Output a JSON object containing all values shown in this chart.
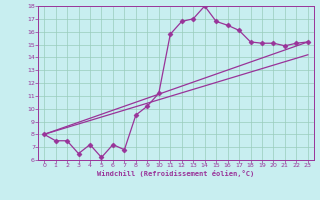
{
  "xlabel": "Windchill (Refroidissement éolien,°C)",
  "bg_color": "#c8eef0",
  "line_color": "#993399",
  "grid_color": "#99ccbb",
  "xlim": [
    -0.5,
    23.5
  ],
  "ylim": [
    6,
    18
  ],
  "xticks": [
    0,
    1,
    2,
    3,
    4,
    5,
    6,
    7,
    8,
    9,
    10,
    11,
    12,
    13,
    14,
    15,
    16,
    17,
    18,
    19,
    20,
    21,
    22,
    23
  ],
  "yticks": [
    6,
    7,
    8,
    9,
    10,
    11,
    12,
    13,
    14,
    15,
    16,
    17,
    18
  ],
  "series1_x": [
    0,
    1,
    2,
    3,
    4,
    5,
    6,
    7,
    8,
    9,
    10,
    11,
    12,
    13,
    14,
    15,
    16,
    17,
    18,
    19,
    20,
    21,
    22,
    23
  ],
  "series1_y": [
    8.0,
    7.5,
    7.5,
    6.5,
    7.2,
    6.2,
    7.2,
    6.8,
    9.5,
    10.2,
    11.2,
    15.8,
    16.8,
    17.0,
    18.0,
    16.8,
    16.5,
    16.1,
    15.2,
    15.1,
    15.1,
    14.9,
    15.1,
    15.2
  ],
  "series2_x": [
    0,
    23
  ],
  "series2_y": [
    8.0,
    14.2
  ],
  "series3_x": [
    0,
    23
  ],
  "series3_y": [
    8.0,
    15.2
  ]
}
